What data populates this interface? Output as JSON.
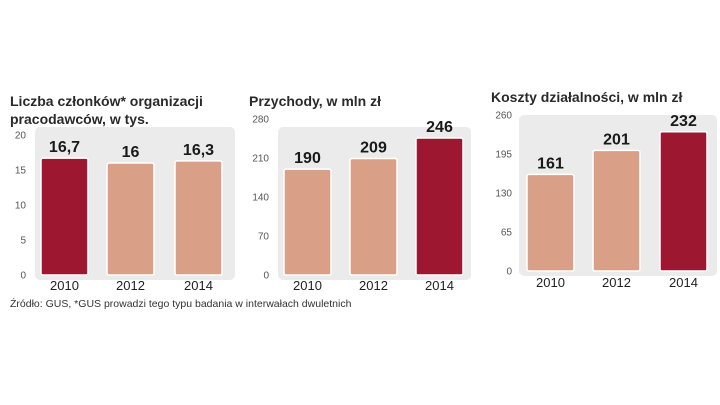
{
  "colors": {
    "panel": "#ebebeb",
    "bar_light": "#d9a087",
    "bar_dark": "#9e1730",
    "bar_outline": "#ffffff",
    "grid": "#d0d0d0"
  },
  "source": "Źródło: GUS, *GUS prowadzi tego typu badania w interwałach dwuletnich",
  "chart_data": [
    {
      "type": "bar",
      "title_lines": [
        "Liczba członków* organizacji",
        "pracodawców, w tys."
      ],
      "categories": [
        "2010",
        "2012",
        "2014"
      ],
      "values": [
        16.7,
        16,
        16.3
      ],
      "value_labels": [
        "16,7",
        "16",
        "16,3"
      ],
      "highlight": [
        true,
        false,
        false
      ],
      "ylim": [
        0,
        20
      ],
      "yticks": [
        0,
        5,
        10,
        15,
        20
      ],
      "ytick_labels": [
        "0",
        "5",
        "10",
        "15",
        "20"
      ]
    },
    {
      "type": "bar",
      "title_lines": [
        "Przychody, w mln zł"
      ],
      "categories": [
        "2010",
        "2012",
        "2014"
      ],
      "values": [
        190,
        209,
        246
      ],
      "value_labels": [
        "190",
        "209",
        "246"
      ],
      "highlight": [
        false,
        false,
        true
      ],
      "ylim": [
        0,
        280
      ],
      "yticks": [
        0,
        70,
        140,
        210,
        280
      ],
      "ytick_labels": [
        "0",
        "70",
        "140",
        "210",
        "280"
      ]
    },
    {
      "type": "bar",
      "title_lines": [
        "Koszty działalności, w mln zł"
      ],
      "categories": [
        "2010",
        "2012",
        "2014"
      ],
      "values": [
        161,
        201,
        232
      ],
      "value_labels": [
        "161",
        "201",
        "232"
      ],
      "highlight": [
        false,
        false,
        true
      ],
      "ylim": [
        0,
        260
      ],
      "yticks": [
        0,
        65,
        130,
        195,
        260
      ],
      "ytick_labels": [
        "0",
        "65",
        "130",
        "195",
        "260"
      ]
    }
  ]
}
